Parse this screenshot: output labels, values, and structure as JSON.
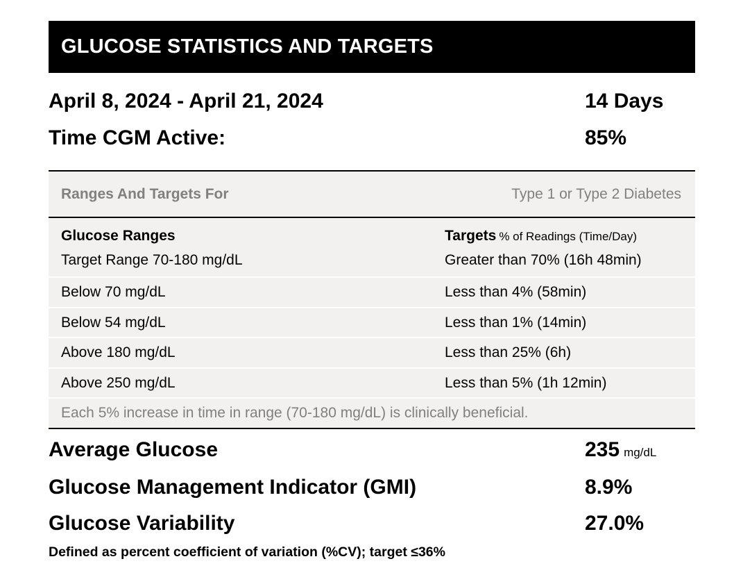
{
  "header": {
    "title": "GLUCOSE STATISTICS AND TARGETS"
  },
  "summary": {
    "date_range": "April 8, 2024 - April 21, 2024",
    "days": "14 Days",
    "cgm_active_label": "Time CGM Active:",
    "cgm_active_value": "85%"
  },
  "ranges_table": {
    "header_left": "Ranges And Targets For",
    "header_right": "Type 1 or Type 2 Diabetes",
    "col1_header": "Glucose Ranges",
    "col2_header_bold": "Targets",
    "col2_header_small": "% of Readings (Time/Day)",
    "rows": [
      {
        "range": "Target Range 70-180 mg/dL",
        "target": "Greater than 70% (16h 48min)"
      },
      {
        "range": "Below 70 mg/dL",
        "target": "Less than 4% (58min)"
      },
      {
        "range": "Below 54 mg/dL",
        "target": "Less than 1% (14min)"
      },
      {
        "range": "Above 180 mg/dL",
        "target": "Less than 25% (6h)"
      },
      {
        "range": "Above 250 mg/dL",
        "target": "Less than 5% (1h 12min)"
      }
    ],
    "footer_note": "Each 5% increase in time in range (70-180 mg/dL) is clinically beneficial."
  },
  "stats": {
    "avg_glucose_label": "Average Glucose",
    "avg_glucose_value": "235",
    "avg_glucose_unit": "mg/dL",
    "gmi_label": "Glucose Management Indicator (GMI)",
    "gmi_value": "8.9%",
    "variability_label": "Glucose Variability",
    "variability_value": "27.0%",
    "variability_note": "Defined as percent coefficient of variation (%CV); target ≤36%"
  }
}
